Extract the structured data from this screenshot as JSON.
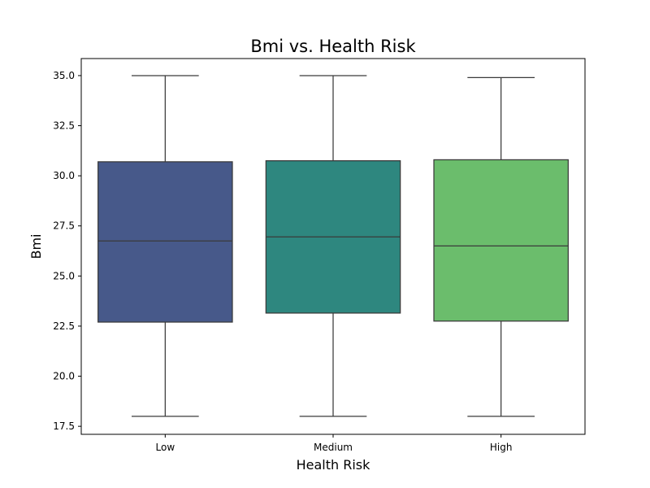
{
  "chart_data": {
    "type": "box",
    "title": "Bmi vs. Health Risk",
    "xlabel": "Health Risk",
    "ylabel": "Bmi",
    "categories": [
      "Low",
      "Medium",
      "High"
    ],
    "ylim": [
      17.1,
      35.85
    ],
    "yticks": [
      17.5,
      20.0,
      22.5,
      25.0,
      27.5,
      30.0,
      32.5,
      35.0
    ],
    "ytick_labels": [
      "17.5",
      "20.0",
      "22.5",
      "25.0",
      "27.5",
      "30.0",
      "32.5",
      "35.0"
    ],
    "boxes": [
      {
        "category": "Low",
        "min": 18.0,
        "q1": 22.7,
        "median": 26.75,
        "q3": 30.7,
        "max": 35.0,
        "color": "#47598a"
      },
      {
        "category": "Medium",
        "min": 18.0,
        "q1": 23.15,
        "median": 26.95,
        "q3": 30.75,
        "max": 35.0,
        "color": "#2e877f"
      },
      {
        "category": "High",
        "min": 18.0,
        "q1": 22.75,
        "median": 26.5,
        "q3": 30.8,
        "max": 34.9,
        "color": "#6bbd6c"
      }
    ],
    "grid": false,
    "legend": "none"
  }
}
